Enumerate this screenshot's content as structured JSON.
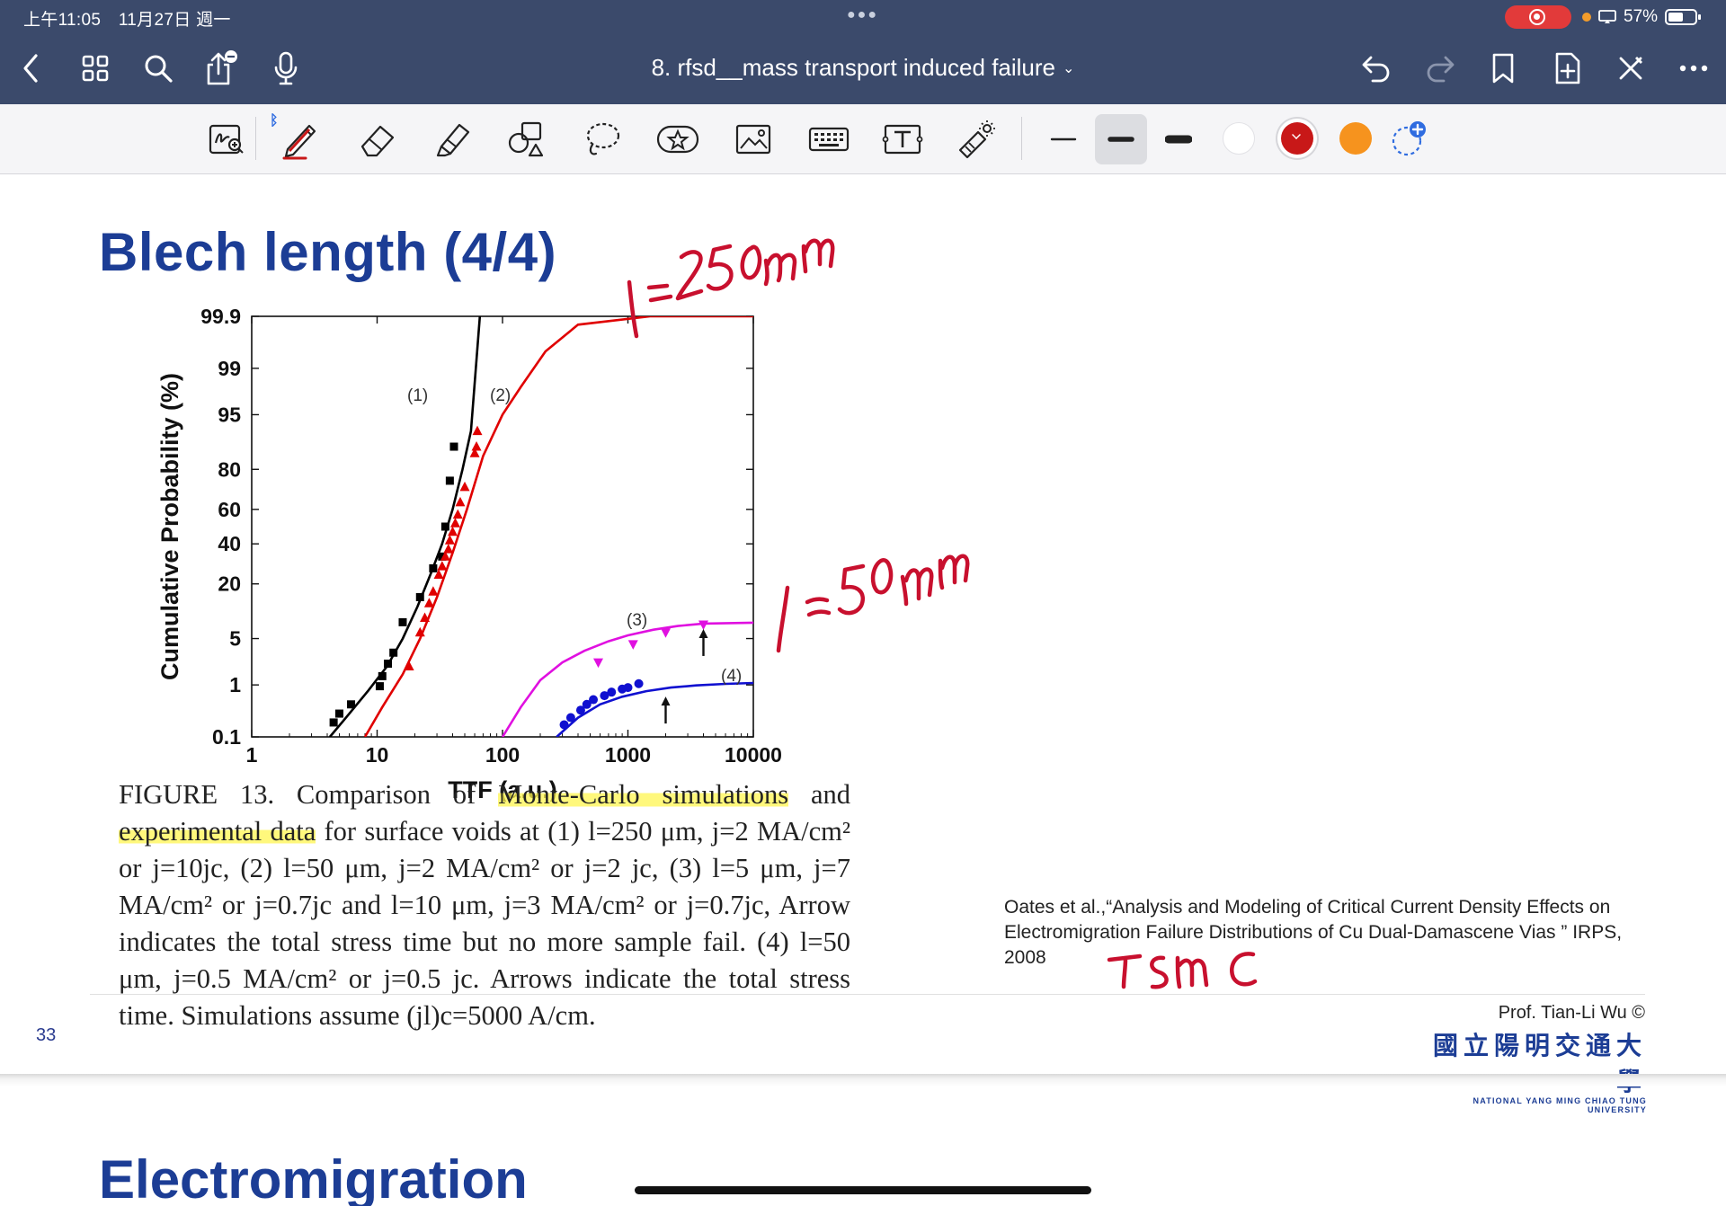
{
  "status_bar": {
    "time": "上午11:05",
    "date": "11月27日 週一",
    "battery_text": "57%",
    "battery_level": 0.57
  },
  "nav": {
    "doc_title": "8. rfsd__mass transport induced failure"
  },
  "toolbar": {
    "tools": [
      "zoom-window-tool",
      "pen-tool",
      "eraser-tool",
      "highlighter-tool",
      "shapes-tool",
      "lasso-tool",
      "elements-tool",
      "image-tool",
      "scanned-text-tool",
      "text-tool",
      "laser-pointer-tool"
    ],
    "active_tool": "pen-tool",
    "active_stroke": "medium",
    "colors": [
      "#ffffff",
      "#c81818",
      "#f6931e"
    ],
    "selected_color": "#c81818"
  },
  "slide": {
    "title": "Blech length (4/4)",
    "caption_runs": [
      {
        "t": "FIGURE 13. Comparison of ",
        "hl": false
      },
      {
        "t": "Monte-Carlo simulations",
        "hl": true
      },
      {
        "t": " and ",
        "hl": false
      },
      {
        "t": "experimental data",
        "hl": true
      },
      {
        "t": " for surface voids at (1) l=250 μm, j=2 MA/cm² or j=10jc, (2) l=50 μm, j=2 MA/cm² or j=2 jc, (3) l=5 μm, j=7 MA/cm² or j=0.7jc and l=10 μm, j=3 MA/cm² or j=0.7jc, Arrow indicates the total stress time but no more sample fail. (4) l=50 μm, j=0.5 MA/cm² or j=0.5 jc. Arrows indicate the total stress time. Simulations assume (jl)c=5000 A/cm.",
        "hl": false
      }
    ],
    "reference": "Oates et al.,“Analysis and Modeling of Critical Current Density Effects on Electromigration Failure Distributions of Cu Dual-Damascene Vias ” IRPS, 2008",
    "page_number": "33",
    "author": "Prof. Tian-Li Wu ©",
    "university_zh": "國立陽明交通大學",
    "university_en": "NATIONAL YANG MING CHIAO TUNG UNIVERSITY"
  },
  "annotations": {
    "ink_color": "#c8102e",
    "handwritten": [
      "l = 250 μm",
      "l = 50 μm",
      "TSMC"
    ]
  },
  "next_slide": {
    "title": "Electromigration"
  },
  "chart_data": {
    "type": "scatter",
    "xlabel": "TTF (a.u.)",
    "ylabel": "Cumulative Probability (%)",
    "x_scale": "log",
    "y_scale": "lognormal-probability",
    "xlim": [
      1,
      10000
    ],
    "ylim": [
      0.1,
      99.9
    ],
    "x_ticks": [
      "1",
      "10",
      "100",
      "1000",
      "10000"
    ],
    "y_ticks": [
      "0.1",
      "1",
      "5",
      "20",
      "40",
      "60",
      "80",
      "95",
      "99",
      "99.9"
    ],
    "grid": false,
    "series_labels": [
      "(1)",
      "(2)",
      "(3)",
      "(4)"
    ],
    "series": [
      {
        "label": "(1)",
        "color": "#000000",
        "marker": "square",
        "points": [
          [
            4.5,
            0.2
          ],
          [
            5,
            0.3
          ],
          [
            6.2,
            0.45
          ],
          [
            10.5,
            0.95
          ],
          [
            11,
            1.4
          ],
          [
            12.2,
            2.2
          ],
          [
            13.5,
            3.2
          ],
          [
            16,
            8
          ],
          [
            22,
            15
          ],
          [
            28,
            27
          ],
          [
            33,
            33
          ],
          [
            35,
            50
          ],
          [
            38,
            75
          ],
          [
            41,
            88
          ]
        ],
        "curve": [
          [
            4.2,
            0.1
          ],
          [
            6,
            0.3
          ],
          [
            8.5,
            0.8
          ],
          [
            12,
            2
          ],
          [
            16,
            5
          ],
          [
            21,
            12
          ],
          [
            27,
            25
          ],
          [
            33,
            40
          ],
          [
            40,
            60
          ],
          [
            48,
            80
          ],
          [
            56,
            92
          ],
          [
            66,
            99.9
          ]
        ]
      },
      {
        "label": "(2)",
        "color": "#e00000",
        "marker": "triangle",
        "points": [
          [
            18,
            2
          ],
          [
            22,
            6
          ],
          [
            24,
            9
          ],
          [
            26,
            13
          ],
          [
            28,
            17
          ],
          [
            31,
            24
          ],
          [
            33,
            28
          ],
          [
            35,
            33
          ],
          [
            37,
            37
          ],
          [
            38,
            42
          ],
          [
            40,
            47
          ],
          [
            42,
            52
          ],
          [
            44,
            57
          ],
          [
            46,
            64
          ],
          [
            50,
            72
          ],
          [
            60,
            86
          ],
          [
            62,
            88
          ],
          [
            63,
            92
          ]
        ],
        "curve": [
          [
            8,
            0.1
          ],
          [
            11,
            0.4
          ],
          [
            16,
            1.5
          ],
          [
            22,
            5
          ],
          [
            30,
            15
          ],
          [
            40,
            35
          ],
          [
            52,
            60
          ],
          [
            70,
            85
          ],
          [
            100,
            95
          ],
          [
            140,
            98
          ],
          [
            220,
            99.5
          ],
          [
            400,
            99.85
          ],
          [
            1500,
            99.9
          ],
          [
            10000,
            99.9
          ]
        ]
      },
      {
        "label": "(3)",
        "color": "#e010e0",
        "marker": "triangle-down",
        "points": [
          [
            580,
            2.3
          ],
          [
            1100,
            4.2
          ],
          [
            2000,
            6
          ],
          [
            4000,
            7.5
          ]
        ],
        "curve": [
          [
            100,
            0.1
          ],
          [
            140,
            0.4
          ],
          [
            200,
            1.2
          ],
          [
            300,
            2.3
          ],
          [
            450,
            3.4
          ],
          [
            700,
            4.6
          ],
          [
            1000,
            5.5
          ],
          [
            1600,
            6.5
          ],
          [
            2500,
            7.2
          ],
          [
            4000,
            7.7
          ],
          [
            10000,
            7.9
          ]
        ]
      },
      {
        "label": "(4)",
        "color": "#1010d0",
        "marker": "circle",
        "points": [
          [
            310,
            0.18
          ],
          [
            350,
            0.25
          ],
          [
            420,
            0.35
          ],
          [
            470,
            0.45
          ],
          [
            530,
            0.55
          ],
          [
            650,
            0.65
          ],
          [
            740,
            0.75
          ],
          [
            900,
            0.85
          ],
          [
            1000,
            0.9
          ],
          [
            1220,
            1.05
          ]
        ],
        "curve": [
          [
            270,
            0.1
          ],
          [
            400,
            0.25
          ],
          [
            600,
            0.45
          ],
          [
            900,
            0.62
          ],
          [
            1400,
            0.78
          ],
          [
            2200,
            0.9
          ],
          [
            3500,
            0.98
          ],
          [
            6000,
            1.04
          ],
          [
            10000,
            1.08
          ]
        ]
      }
    ],
    "arrows": [
      {
        "series": "(3)",
        "x": 4000
      },
      {
        "series": "(4)",
        "x": 2000
      }
    ]
  }
}
